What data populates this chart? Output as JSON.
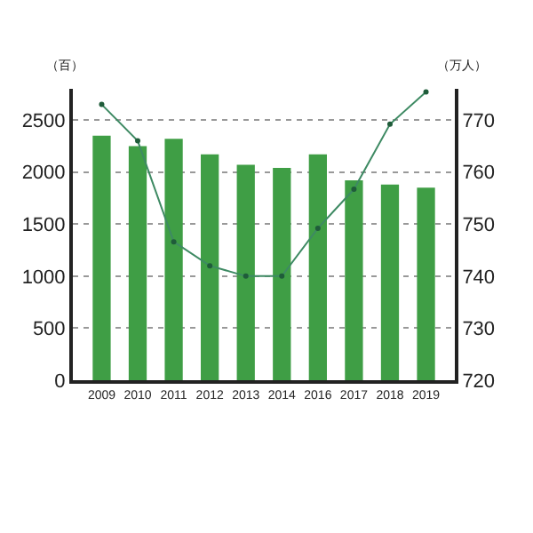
{
  "chart_data": {
    "type": "bar",
    "categories": [
      "2009",
      "2010",
      "2011",
      "2012",
      "2013",
      "2014",
      "2016",
      "2017",
      "2018",
      "2019"
    ],
    "ylabel": "（百）",
    "y2label": "（万人）",
    "series": [
      {
        "color": "#3f9e45",
        "values": [
          2350,
          2250,
          2320,
          2170,
          2070,
          2040,
          2170,
          1920,
          1880,
          1850
        ]
      },
      {
        "type": "line",
        "axis": "y2",
        "color": "#3e8a63",
        "marker": "circle",
        "values": [
          773,
          766,
          746.6,
          742,
          740,
          740,
          749.2,
          756.7,
          769.2,
          775.4
        ]
      }
    ],
    "ylim": [
      0,
      2800
    ],
    "yticks": [
      0,
      500,
      1000,
      1500,
      2000,
      2500
    ],
    "y2lim": [
      720,
      776
    ],
    "y2ticks": [
      720,
      730,
      740,
      750,
      760,
      770
    ],
    "grid": "y"
  }
}
